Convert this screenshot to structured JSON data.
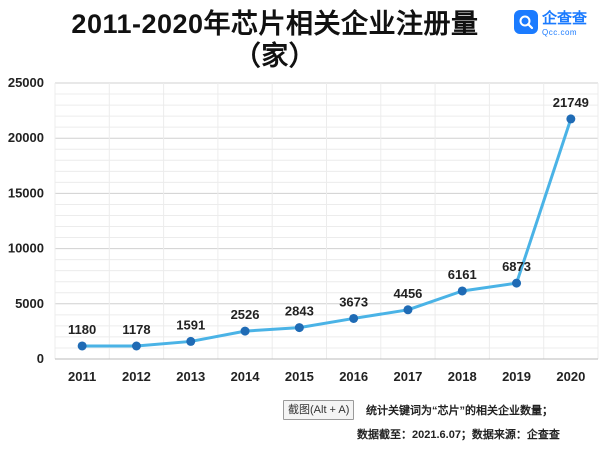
{
  "header": {
    "title_line1": "2011-2020年芯片相关企业注册量",
    "title_line2": "（家）"
  },
  "brand": {
    "name": "企查查",
    "domain": "Qcc.com",
    "color": "#1b7bff"
  },
  "tooltip": {
    "text": "截图(Alt + A)"
  },
  "footnote": {
    "line1": "统计关键词为“芯片”的相关企业数量；",
    "line2": "数据截至：2021.6.07；数据来源：企查查"
  },
  "chart_data": {
    "type": "line",
    "categories": [
      "2011",
      "2012",
      "2013",
      "2014",
      "2015",
      "2016",
      "2017",
      "2018",
      "2019",
      "2020"
    ],
    "series": [
      {
        "values": [
          1180,
          1178,
          1591,
          2526,
          2843,
          3673,
          4456,
          6161,
          6873,
          21749
        ],
        "line_color": "#4ab3e6",
        "marker_color": "#1f6bb5"
      }
    ],
    "ylim": [
      0,
      25000
    ],
    "yticks": [
      0,
      5000,
      10000,
      15000,
      20000,
      25000
    ],
    "grid": true,
    "data_labels": true
  }
}
